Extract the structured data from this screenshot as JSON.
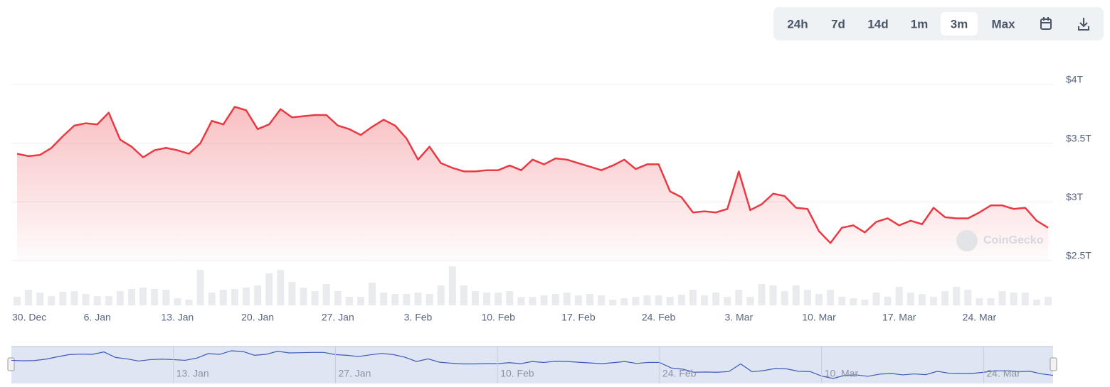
{
  "chart_data": {
    "type": "line",
    "buttons": [
      "24h",
      "7d",
      "14d",
      "1m",
      "3m",
      "Max"
    ],
    "active_button": "3m",
    "watermark": "CoinGecko",
    "categories": [
      "30. Dec",
      null,
      null,
      null,
      null,
      null,
      null,
      "6. Jan",
      null,
      null,
      null,
      null,
      null,
      null,
      "13. Jan",
      null,
      null,
      null,
      null,
      null,
      null,
      "20. Jan",
      null,
      null,
      null,
      null,
      null,
      null,
      "27. Jan",
      null,
      null,
      null,
      null,
      null,
      null,
      "3. Feb",
      null,
      null,
      null,
      null,
      null,
      null,
      "10. Feb",
      null,
      null,
      null,
      null,
      null,
      null,
      "17. Feb",
      null,
      null,
      null,
      null,
      null,
      null,
      "24. Feb",
      null,
      null,
      null,
      null,
      null,
      null,
      "3. Mar",
      null,
      null,
      null,
      null,
      null,
      null,
      "10. Mar",
      null,
      null,
      null,
      null,
      null,
      null,
      "17. Mar",
      null,
      null,
      null,
      null,
      null,
      null,
      "24. Mar",
      null,
      null,
      null,
      null,
      null,
      null
    ],
    "series": [
      {
        "color": "#ea3943",
        "values": [
          3.41,
          3.39,
          3.4,
          3.46,
          3.56,
          3.65,
          3.67,
          3.66,
          3.76,
          3.53,
          3.47,
          3.38,
          3.44,
          3.46,
          3.44,
          3.41,
          3.5,
          3.69,
          3.66,
          3.81,
          3.78,
          3.62,
          3.66,
          3.79,
          3.72,
          3.73,
          3.74,
          3.74,
          3.65,
          3.62,
          3.57,
          3.64,
          3.7,
          3.65,
          3.54,
          3.36,
          3.47,
          3.33,
          3.29,
          3.26,
          3.26,
          3.27,
          3.27,
          3.31,
          3.27,
          3.36,
          3.32,
          3.37,
          3.36,
          3.33,
          3.3,
          3.27,
          3.31,
          3.36,
          3.28,
          3.32,
          3.32,
          3.09,
          3.04,
          2.91,
          2.92,
          2.91,
          2.94,
          3.26,
          2.93,
          2.98,
          3.07,
          3.05,
          2.95,
          2.94,
          2.75,
          2.65,
          2.78,
          2.8,
          2.74,
          2.83,
          2.86,
          2.8,
          2.84,
          2.81,
          2.95,
          2.87,
          2.86,
          2.86,
          2.91,
          2.97,
          2.97,
          2.94,
          2.95,
          2.84,
          2.78
        ]
      }
    ],
    "volume": {
      "color": "#e9ebef",
      "values": [
        12,
        22,
        18,
        13,
        19,
        20,
        16,
        13,
        13,
        20,
        23,
        25,
        23,
        22,
        10,
        8,
        50,
        18,
        22,
        23,
        25,
        28,
        45,
        50,
        33,
        25,
        20,
        30,
        20,
        12,
        12,
        32,
        18,
        16,
        16,
        18,
        16,
        28,
        55,
        28,
        20,
        18,
        18,
        20,
        12,
        12,
        14,
        16,
        18,
        14,
        16,
        14,
        8,
        10,
        12,
        14,
        14,
        12,
        15,
        22,
        14,
        18,
        12,
        22,
        12,
        30,
        28,
        20,
        28,
        22,
        16,
        22,
        12,
        10,
        8,
        18,
        12,
        26,
        18,
        16,
        12,
        20,
        26,
        22,
        10,
        10,
        20,
        18,
        18,
        8,
        12
      ]
    },
    "ylim": [
      2.5,
      4
    ],
    "yticks": [
      {
        "value": 2.5,
        "label": "$2.5T"
      },
      {
        "value": 3,
        "label": "$3T"
      },
      {
        "value": 3.5,
        "label": "$3.5T"
      },
      {
        "value": 4,
        "label": "$4T"
      }
    ],
    "grid": true,
    "navigator_labels": [
      "13. Jan",
      "27. Jan",
      "10. Feb",
      "24. Feb",
      "10. Mar",
      "24. Mar"
    ]
  }
}
